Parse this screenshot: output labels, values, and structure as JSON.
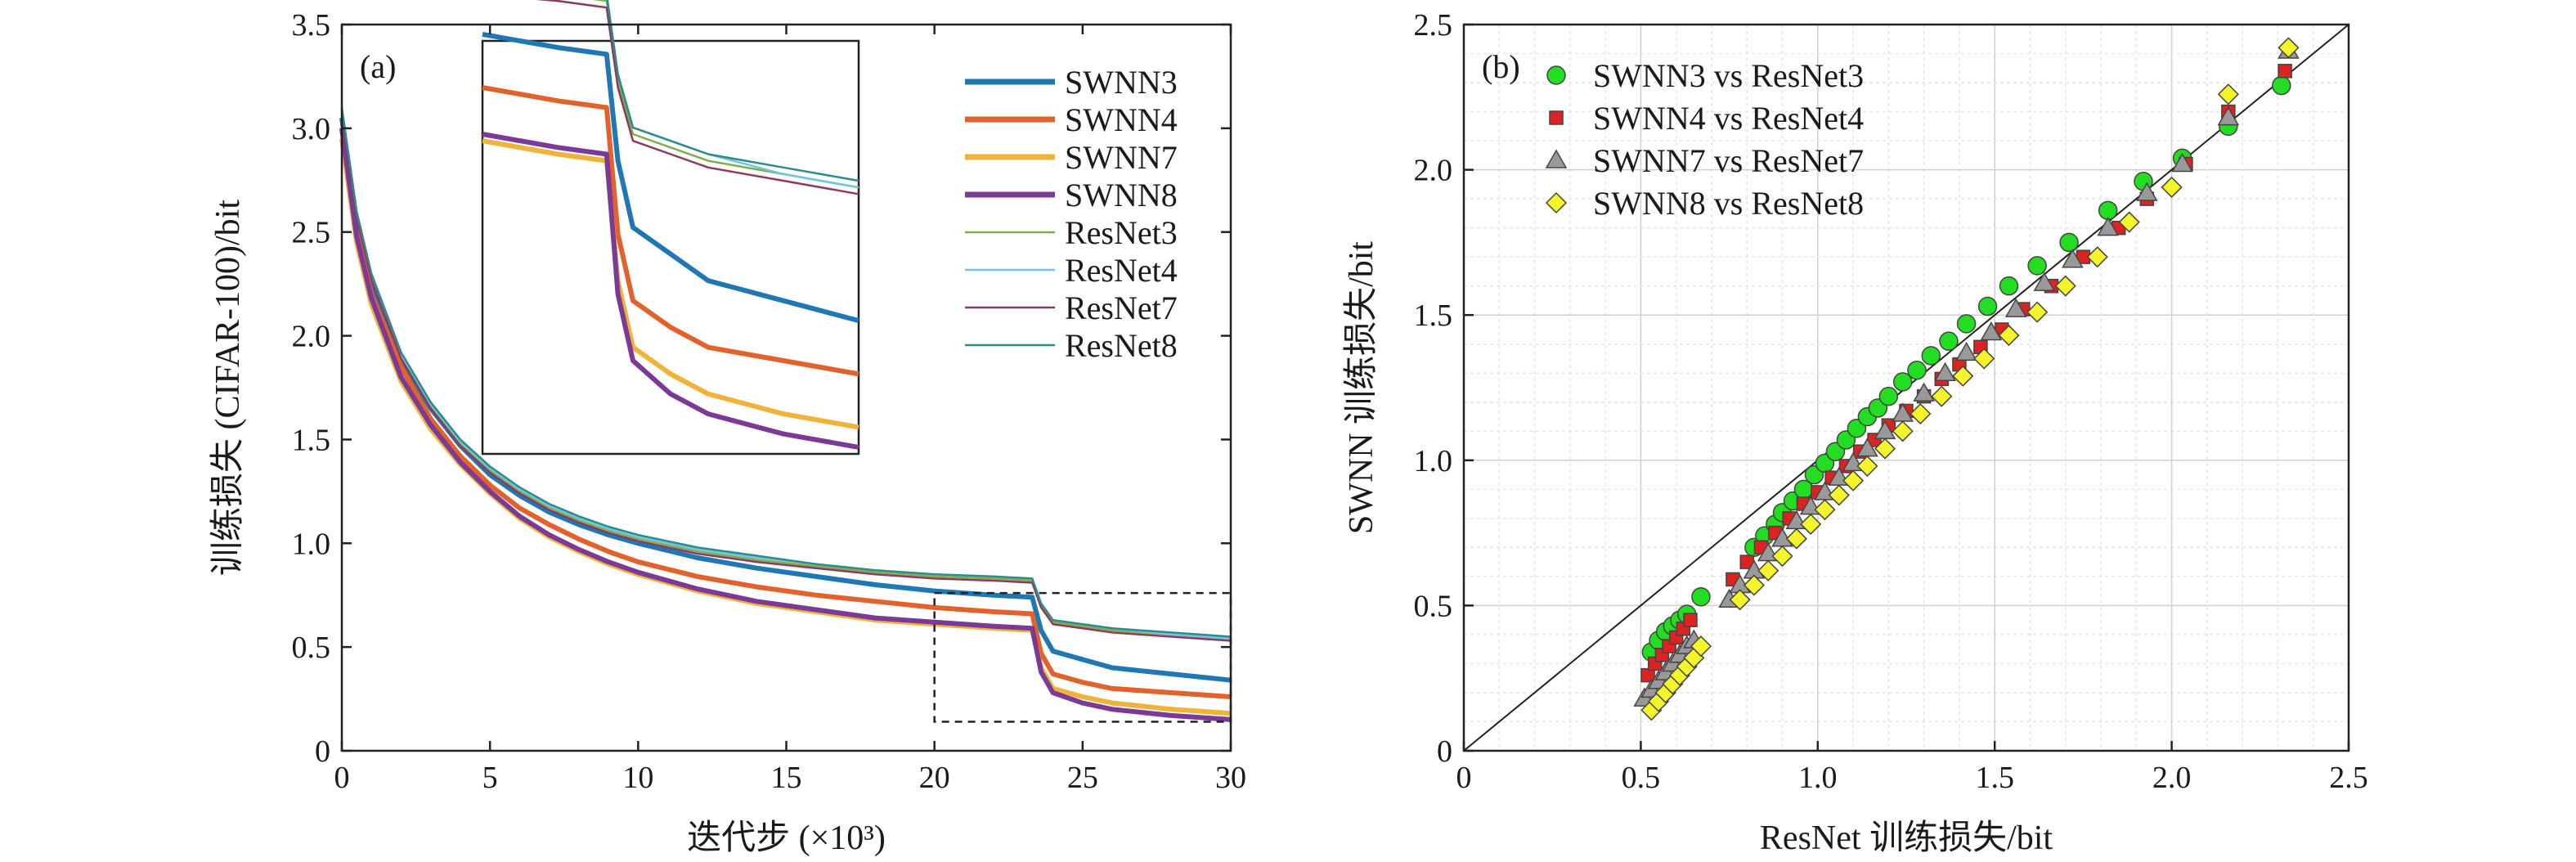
{
  "figure": {
    "panel_a_tag": "(a)",
    "panel_b_tag": "(b)"
  },
  "chart_data": [
    {
      "type": "line",
      "panel": "(a)",
      "title": "",
      "xlabel": "迭代步 (×10³)",
      "ylabel": "训练损失 (CIFAR-100)/bit",
      "xlim": [
        0,
        30
      ],
      "ylim": [
        0,
        3.5
      ],
      "xticks": [
        "0",
        "5",
        "10",
        "15",
        "20",
        "25",
        "30"
      ],
      "yticks": [
        "0",
        "0.5",
        "1.0",
        "1.5",
        "2.0",
        "2.5",
        "3.0",
        "3.5"
      ],
      "grid": false,
      "legend_position": "top-right",
      "inset": {
        "type": "line",
        "x_range": [
          20,
          30
        ],
        "y_range": [
          0.14,
          0.76
        ],
        "description_visible": false
      },
      "series": [
        {
          "name": "SWNN3",
          "color": "#1f77b4",
          "linewidth": "thick",
          "x": [
            0,
            0.5,
            1,
            2,
            3,
            4,
            5,
            6,
            7,
            8,
            9,
            10,
            12,
            14,
            16,
            18,
            20,
            22,
            23.3,
            23.6,
            24,
            25,
            26,
            28,
            30
          ],
          "y": [
            3.05,
            2.55,
            2.25,
            1.88,
            1.65,
            1.47,
            1.33,
            1.23,
            1.15,
            1.09,
            1.04,
            1.0,
            0.93,
            0.88,
            0.84,
            0.8,
            0.77,
            0.75,
            0.74,
            0.58,
            0.48,
            0.44,
            0.4,
            0.37,
            0.34
          ]
        },
        {
          "name": "SWNN4",
          "color": "#e2622c",
          "linewidth": "thick",
          "x": [
            0,
            0.5,
            1,
            2,
            3,
            4,
            5,
            6,
            7,
            8,
            9,
            10,
            12,
            14,
            16,
            18,
            20,
            22,
            23.3,
            23.6,
            24,
            25,
            26,
            28,
            30
          ],
          "y": [
            3.0,
            2.5,
            2.2,
            1.85,
            1.6,
            1.42,
            1.28,
            1.17,
            1.09,
            1.02,
            0.96,
            0.91,
            0.84,
            0.79,
            0.75,
            0.72,
            0.69,
            0.67,
            0.66,
            0.47,
            0.37,
            0.33,
            0.3,
            0.28,
            0.26
          ]
        },
        {
          "name": "SWNN7",
          "color": "#f1b23a",
          "linewidth": "thick",
          "x": [
            0,
            0.5,
            1,
            2,
            3,
            4,
            5,
            6,
            7,
            8,
            9,
            10,
            12,
            14,
            16,
            18,
            20,
            22,
            23.3,
            23.6,
            24,
            25,
            26,
            28,
            30
          ],
          "y": [
            2.95,
            2.45,
            2.15,
            1.78,
            1.55,
            1.38,
            1.24,
            1.12,
            1.03,
            0.96,
            0.9,
            0.85,
            0.77,
            0.71,
            0.67,
            0.63,
            0.61,
            0.59,
            0.58,
            0.4,
            0.3,
            0.26,
            0.23,
            0.2,
            0.18
          ]
        },
        {
          "name": "SWNN8",
          "color": "#7b3a96",
          "linewidth": "thick",
          "x": [
            0,
            0.5,
            1,
            2,
            3,
            4,
            5,
            6,
            7,
            8,
            9,
            10,
            12,
            14,
            16,
            18,
            20,
            22,
            23.3,
            23.6,
            24,
            25,
            26,
            28,
            30
          ],
          "y": [
            3.0,
            2.48,
            2.18,
            1.8,
            1.57,
            1.39,
            1.25,
            1.13,
            1.04,
            0.97,
            0.91,
            0.86,
            0.78,
            0.72,
            0.68,
            0.64,
            0.62,
            0.6,
            0.59,
            0.38,
            0.28,
            0.23,
            0.2,
            0.17,
            0.15
          ]
        },
        {
          "name": "ResNet3",
          "color": "#7fae4f",
          "linewidth": "thin",
          "x": [
            0,
            0.5,
            1,
            2,
            3,
            4,
            5,
            6,
            7,
            8,
            9,
            10,
            12,
            14,
            16,
            18,
            20,
            22,
            23.3,
            23.6,
            24,
            25,
            26,
            28,
            30
          ],
          "y": [
            3.08,
            2.58,
            2.28,
            1.9,
            1.66,
            1.48,
            1.35,
            1.25,
            1.17,
            1.11,
            1.06,
            1.02,
            0.96,
            0.92,
            0.89,
            0.86,
            0.84,
            0.83,
            0.82,
            0.7,
            0.62,
            0.6,
            0.58,
            0.56,
            0.54
          ]
        },
        {
          "name": "ResNet4",
          "color": "#6fc6e2",
          "linewidth": "thin",
          "x": [
            0,
            0.5,
            1,
            2,
            3,
            4,
            5,
            6,
            7,
            8,
            9,
            10,
            12,
            14,
            16,
            18,
            20,
            22,
            23.3,
            23.6,
            24,
            25,
            26,
            28,
            30
          ],
          "y": [
            3.09,
            2.59,
            2.29,
            1.91,
            1.67,
            1.49,
            1.36,
            1.26,
            1.18,
            1.12,
            1.07,
            1.03,
            0.97,
            0.93,
            0.9,
            0.87,
            0.85,
            0.84,
            0.83,
            0.71,
            0.63,
            0.61,
            0.59,
            0.56,
            0.54
          ]
        },
        {
          "name": "ResNet7",
          "color": "#8e3a5e",
          "linewidth": "thin",
          "x": [
            0,
            0.5,
            1,
            2,
            3,
            4,
            5,
            6,
            7,
            8,
            9,
            10,
            12,
            14,
            16,
            18,
            20,
            22,
            23.3,
            23.6,
            24,
            25,
            26,
            28,
            30
          ],
          "y": [
            3.07,
            2.57,
            2.27,
            1.89,
            1.65,
            1.47,
            1.34,
            1.24,
            1.16,
            1.1,
            1.05,
            1.01,
            0.95,
            0.91,
            0.88,
            0.85,
            0.83,
            0.82,
            0.81,
            0.69,
            0.61,
            0.59,
            0.57,
            0.55,
            0.53
          ]
        },
        {
          "name": "ResNet8",
          "color": "#2e8b8b",
          "linewidth": "thin",
          "x": [
            0,
            0.5,
            1,
            2,
            3,
            4,
            5,
            6,
            7,
            8,
            9,
            10,
            12,
            14,
            16,
            18,
            20,
            22,
            23.3,
            23.6,
            24,
            25,
            26,
            28,
            30
          ],
          "y": [
            3.1,
            2.6,
            2.3,
            1.92,
            1.68,
            1.5,
            1.37,
            1.27,
            1.19,
            1.13,
            1.08,
            1.04,
            0.98,
            0.94,
            0.9,
            0.87,
            0.85,
            0.84,
            0.83,
            0.71,
            0.63,
            0.61,
            0.59,
            0.57,
            0.55
          ]
        }
      ]
    },
    {
      "type": "scatter",
      "panel": "(b)",
      "title": "",
      "xlabel": "ResNet 训练损失/bit",
      "ylabel": "SWNN 训练损失/bit",
      "xlim": [
        0,
        2.5
      ],
      "ylim": [
        0,
        2.5
      ],
      "xticks": [
        "0",
        "0.5",
        "1.0",
        "1.5",
        "2.0",
        "2.5"
      ],
      "yticks": [
        "0",
        "0.5",
        "1.0",
        "1.5",
        "2.0",
        "2.5"
      ],
      "grid": true,
      "reference_line": "y = x",
      "legend_position": "top-left",
      "series": [
        {
          "name": "SWNN3 vs ResNet3",
          "marker": "circle",
          "color": "#22dd22",
          "x": [
            0.53,
            0.55,
            0.57,
            0.59,
            0.61,
            0.63,
            0.67,
            0.82,
            0.85,
            0.88,
            0.9,
            0.93,
            0.96,
            0.99,
            1.02,
            1.05,
            1.08,
            1.11,
            1.14,
            1.17,
            1.2,
            1.24,
            1.28,
            1.32,
            1.37,
            1.42,
            1.48,
            1.54,
            1.62,
            1.71,
            1.82,
            1.92,
            2.03,
            2.16,
            2.31
          ],
          "y": [
            0.34,
            0.38,
            0.41,
            0.43,
            0.45,
            0.47,
            0.53,
            0.7,
            0.74,
            0.78,
            0.82,
            0.86,
            0.9,
            0.95,
            0.99,
            1.03,
            1.07,
            1.11,
            1.15,
            1.18,
            1.22,
            1.27,
            1.31,
            1.36,
            1.41,
            1.47,
            1.53,
            1.6,
            1.67,
            1.75,
            1.86,
            1.96,
            2.04,
            2.15,
            2.29
          ]
        },
        {
          "name": "SWNN4 vs ResNet4",
          "marker": "square",
          "color": "#dd2222",
          "x": [
            0.52,
            0.54,
            0.56,
            0.58,
            0.6,
            0.62,
            0.64,
            0.76,
            0.8,
            0.84,
            0.88,
            0.92,
            0.96,
            1.0,
            1.04,
            1.08,
            1.12,
            1.16,
            1.2,
            1.25,
            1.3,
            1.35,
            1.4,
            1.46,
            1.52,
            1.58,
            1.66,
            1.75,
            1.85,
            1.93,
            2.04,
            2.16,
            2.32
          ],
          "y": [
            0.26,
            0.3,
            0.33,
            0.36,
            0.39,
            0.42,
            0.45,
            0.59,
            0.65,
            0.7,
            0.75,
            0.8,
            0.85,
            0.89,
            0.94,
            0.98,
            1.03,
            1.07,
            1.12,
            1.17,
            1.22,
            1.28,
            1.33,
            1.39,
            1.45,
            1.52,
            1.6,
            1.7,
            1.8,
            1.9,
            2.02,
            2.2,
            2.34
          ]
        },
        {
          "name": "SWNN7 vs ResNet7",
          "marker": "triangle",
          "color": "#999999",
          "x": [
            0.51,
            0.53,
            0.55,
            0.57,
            0.59,
            0.61,
            0.63,
            0.65,
            0.75,
            0.78,
            0.82,
            0.86,
            0.9,
            0.94,
            0.98,
            1.02,
            1.06,
            1.1,
            1.14,
            1.19,
            1.24,
            1.3,
            1.36,
            1.42,
            1.49,
            1.56,
            1.64,
            1.72,
            1.82,
            1.93,
            2.03,
            2.16,
            2.33
          ],
          "y": [
            0.18,
            0.21,
            0.24,
            0.27,
            0.3,
            0.33,
            0.36,
            0.38,
            0.52,
            0.57,
            0.62,
            0.68,
            0.73,
            0.79,
            0.84,
            0.89,
            0.94,
            0.99,
            1.04,
            1.1,
            1.16,
            1.23,
            1.3,
            1.37,
            1.44,
            1.52,
            1.61,
            1.69,
            1.8,
            1.92,
            2.02,
            2.18,
            2.41
          ]
        },
        {
          "name": "SWNN8 vs ResNet8",
          "marker": "diamond",
          "color": "#f4f42a",
          "x": [
            0.53,
            0.55,
            0.57,
            0.59,
            0.61,
            0.63,
            0.65,
            0.67,
            0.78,
            0.82,
            0.86,
            0.9,
            0.94,
            0.98,
            1.02,
            1.06,
            1.1,
            1.14,
            1.19,
            1.24,
            1.29,
            1.35,
            1.41,
            1.47,
            1.54,
            1.62,
            1.7,
            1.79,
            1.88,
            2.0,
            2.16,
            2.33
          ],
          "y": [
            0.14,
            0.17,
            0.2,
            0.23,
            0.26,
            0.29,
            0.32,
            0.36,
            0.52,
            0.57,
            0.62,
            0.67,
            0.73,
            0.78,
            0.83,
            0.88,
            0.93,
            0.98,
            1.04,
            1.1,
            1.16,
            1.22,
            1.29,
            1.35,
            1.43,
            1.51,
            1.6,
            1.7,
            1.82,
            1.94,
            2.26,
            2.42
          ]
        }
      ]
    }
  ]
}
